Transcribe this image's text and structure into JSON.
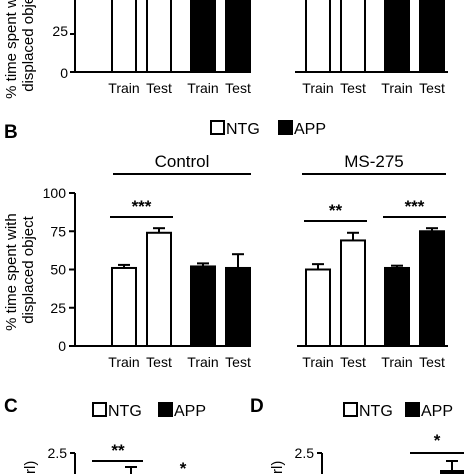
{
  "figure": {
    "panels_top": {
      "ylabel_lines": [
        "% time spent with",
        "displaced object"
      ],
      "ytick_labels": [
        "25",
        "0"
      ],
      "x_labels": [
        "Train",
        "Test",
        "Train",
        "Test",
        "Train",
        "Test",
        "Train",
        "Test"
      ]
    },
    "panel_b": {
      "letter": "B",
      "legend": [
        {
          "label": "NTG",
          "color": "#ffffff"
        },
        {
          "label": "APP",
          "color": "#000000"
        }
      ],
      "groups": [
        "Control",
        "MS-275"
      ],
      "ylabel_lines": [
        "% time spent with",
        "displaced object"
      ],
      "ytick_labels": [
        "0",
        "25",
        "50",
        "75",
        "100"
      ],
      "x_labels": [
        "Train",
        "Test",
        "Train",
        "Test",
        "Train",
        "Test",
        "Train",
        "Test"
      ],
      "significance": [
        "***",
        "**",
        "***"
      ]
    },
    "panel_c": {
      "letter": "C",
      "legend": [
        {
          "label": "NTG",
          "color": "#ffffff"
        },
        {
          "label": "APP",
          "color": "#000000"
        }
      ],
      "ytick_labels": [
        "2.5"
      ],
      "significance": [
        "**",
        "*"
      ]
    },
    "panel_d": {
      "letter": "D",
      "legend": [
        {
          "label": "NTG",
          "color": "#ffffff"
        },
        {
          "label": "APP",
          "color": "#000000"
        }
      ],
      "ytick_labels": [
        "2.5"
      ],
      "significance": [
        "*"
      ]
    }
  },
  "chart_data": [
    {
      "type": "bar",
      "ylim": [
        0,
        100
      ],
      "categories": [
        "Train",
        "Test",
        "Train",
        "Test",
        "Train",
        "Test",
        "Train",
        "Test"
      ],
      "groups": [
        "Control",
        "MS-275"
      ],
      "series": [
        {
          "name": "NTG",
          "color": "#ffffff",
          "values": [
            51,
            74,
            null,
            null,
            50,
            69,
            null,
            null
          ],
          "errors": [
            2,
            3,
            null,
            null,
            3.5,
            5,
            null,
            null
          ]
        },
        {
          "name": "APP",
          "color": "#000000",
          "values": [
            null,
            null,
            52,
            51,
            null,
            null,
            51,
            75
          ],
          "errors": [
            null,
            null,
            2,
            9,
            null,
            null,
            1.5,
            2
          ]
        }
      ],
      "annotations": [
        {
          "text": "***",
          "from": "Control Train (NTG)",
          "to": "Control Test (NTG)"
        },
        {
          "text": "**",
          "from": "MS-275 Train (NTG)",
          "to": "MS-275 Test (NTG)"
        },
        {
          "text": "***",
          "from": "MS-275 Train (APP)",
          "to": "MS-275 Test (APP)"
        }
      ],
      "xlabel": "",
      "ylabel": "% time spent with displaced object"
    }
  ]
}
